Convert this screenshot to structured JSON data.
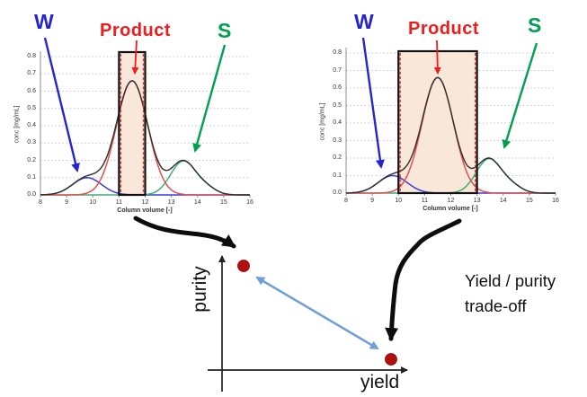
{
  "colors": {
    "label_w": "#2525cf",
    "label_product": "#ee1c1c",
    "label_s": "#00a050",
    "curve_w": "#3b3bd8",
    "curve_product": "#e0504f",
    "curve_s": "#3fae74",
    "curve_total": "#2e2e2e",
    "grid": "#c6c6c6",
    "axis": "#8f8f8f",
    "window_fill": "#f9e8da",
    "window_border": "#111111",
    "window_dash": "#e03030",
    "dot": "#b30e0e",
    "tradeoff_arrow": "#6f9fd8",
    "black_arrow": "#0d0d0d"
  },
  "charts": {
    "left": {
      "w_label": "W",
      "product_label": "Product",
      "s_label": "S"
    },
    "right": {
      "w_label": "W",
      "product_label": "Product",
      "s_label": "S"
    }
  },
  "tradeoff": {
    "purity_axis_label": "purity",
    "yield_axis_label": "yield",
    "caption_line1": "Yield / purity",
    "caption_line2": "trade-off"
  },
  "chart_data": [
    {
      "id": "left-chromatogram-narrow-window",
      "type": "line",
      "xlabel": "Column volume [-]",
      "ylabel": "conc [mg/mL]",
      "xlim": [
        8,
        16
      ],
      "ylim": [
        0,
        0.8
      ],
      "xticks": [
        "8",
        "9",
        "10",
        "11",
        "12",
        "13",
        "14",
        "15",
        "16"
      ],
      "yticks": [
        "0.0",
        "0.1",
        "0.2",
        "0.3",
        "0.4",
        "0.5",
        "0.6",
        "0.7",
        "0.8"
      ],
      "grid": "horizontal dotted",
      "collection_window": {
        "x_start": 11,
        "x_end": 12
      },
      "series": [
        {
          "name": "W",
          "color": "#3b3bd8",
          "components": [
            {
              "amp": 0.1,
              "mu": 9.78,
              "sigma": 0.55
            }
          ]
        },
        {
          "name": "Product",
          "color": "#e0504f",
          "components": [
            {
              "amp": 0.66,
              "mu": 11.5,
              "sigma": 0.6
            }
          ]
        },
        {
          "name": "S",
          "color": "#3fae74",
          "components": [
            {
              "amp": 0.195,
              "mu": 13.45,
              "sigma": 0.48
            },
            {
              "amp": 0.035,
              "mu": 14.35,
              "sigma": 0.38
            }
          ]
        },
        {
          "name": "Total",
          "color": "#2e2e2e",
          "total": true
        }
      ]
    },
    {
      "id": "right-chromatogram-wide-window",
      "type": "line",
      "xlabel": "Column volume [-]",
      "ylabel": "conc [mg/mL]",
      "xlim": [
        8,
        16
      ],
      "ylim": [
        0,
        0.8
      ],
      "xticks": [
        "8",
        "9",
        "10",
        "11",
        "12",
        "13",
        "14",
        "15",
        "16"
      ],
      "yticks": [
        "0.0",
        "0.1",
        "0.2",
        "0.3",
        "0.4",
        "0.5",
        "0.6",
        "0.7",
        "0.8"
      ],
      "grid": "horizontal dotted",
      "collection_window": {
        "x_start": 10,
        "x_end": 13
      },
      "series": [
        {
          "name": "W",
          "color": "#3b3bd8",
          "components": [
            {
              "amp": 0.1,
              "mu": 9.78,
              "sigma": 0.55
            }
          ]
        },
        {
          "name": "Product",
          "color": "#e0504f",
          "components": [
            {
              "amp": 0.66,
              "mu": 11.5,
              "sigma": 0.6
            }
          ]
        },
        {
          "name": "S",
          "color": "#3fae74",
          "components": [
            {
              "amp": 0.195,
              "mu": 13.45,
              "sigma": 0.48
            },
            {
              "amp": 0.035,
              "mu": 14.35,
              "sigma": 0.38
            }
          ]
        },
        {
          "name": "Total",
          "color": "#2e2e2e",
          "total": true
        }
      ]
    },
    {
      "id": "yield-purity-tradeoff",
      "type": "scatter",
      "xlabel": "yield",
      "ylabel": "purity",
      "axis_tick_numbers_shown": false,
      "points": [
        {
          "linked_chart": "left (narrow window 11-12)",
          "yield_relative": 0.15,
          "purity_relative": 0.85
        },
        {
          "linked_chart": "right (wide window 10-13)",
          "yield_relative": 0.88,
          "purity_relative": 0.1
        }
      ],
      "connector": "double-headed arrow between the two points"
    }
  ]
}
